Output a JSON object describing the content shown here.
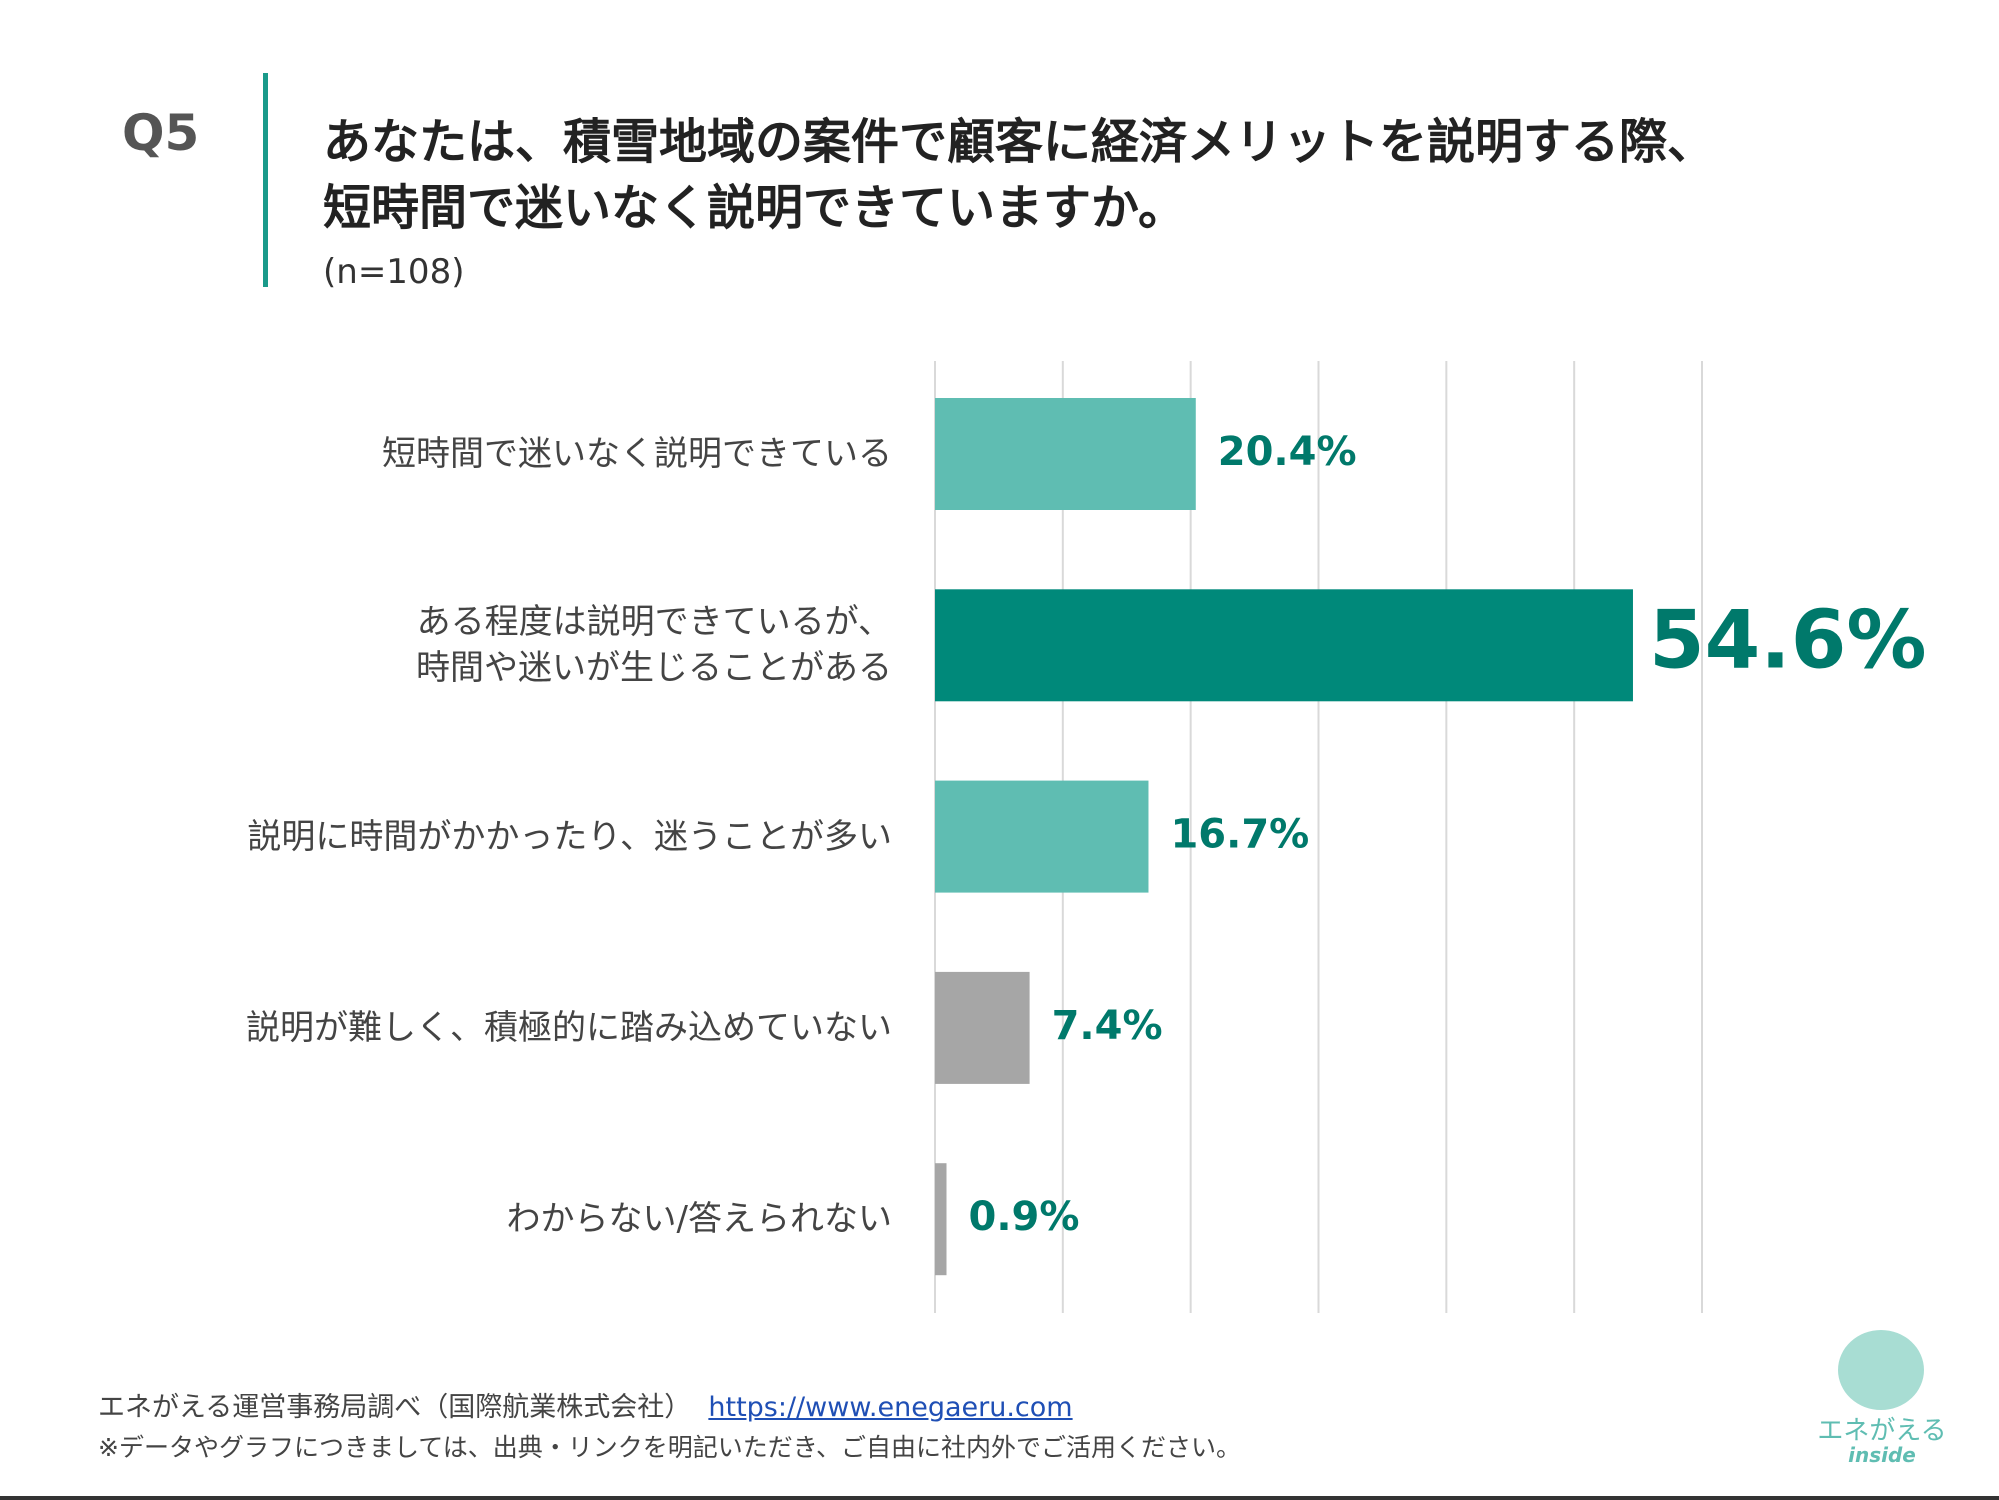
{
  "page": {
    "question_number": "Q5",
    "title_lines": [
      "あなたは、積雪地域の案件で顧客に経済メリットを説明する際、",
      "短時間で迷いなく説明できていますか。"
    ],
    "sample": "(n=108)",
    "source": "エネがえる運営事務局調べ（国際航業株式会社）",
    "link": "https://www.enegaeru.com",
    "note": "※データやグラフにつきましては、出典・リンクを明記いただき、ご自由に社内外でご活用ください。",
    "logo": [
      "エネがえる",
      "inside"
    ]
  },
  "chart_data": {
    "type": "barh",
    "categories": [
      "短時間で迷いなく説明できている",
      "ある程度は説明できているが、\n時間や迷いが生じることがある",
      "説明に時間がかかったり、迷うことが多い",
      "説明が難しく、積極的に踏み込めていない",
      "わからない/答えられない"
    ],
    "values": [
      20.4,
      54.6,
      16.7,
      7.4,
      0.9
    ],
    "value_labels": [
      "20.4%",
      "54.6%",
      "16.7%",
      "7.4%",
      "0.9%"
    ],
    "colors": [
      "#5fbdb2",
      "#00897a",
      "#5fbdb2",
      "#a6a6a6",
      "#a6a6a6"
    ],
    "label_color": "#00796b",
    "xlim": [
      0,
      60
    ],
    "xticks": [
      0,
      10,
      20,
      30,
      40,
      50,
      60
    ],
    "grid": true
  }
}
